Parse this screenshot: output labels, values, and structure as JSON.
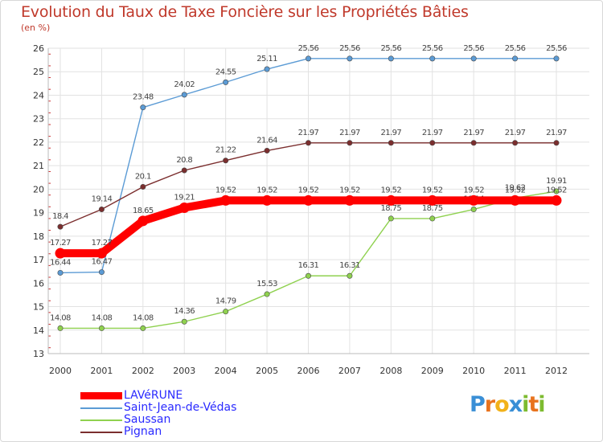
{
  "header": {
    "title": "Evolution du Taux de Taxe Foncière sur les Propriétés Bâties",
    "subtitle": "(en %)"
  },
  "logo": {
    "letters": [
      "P",
      "r",
      "o",
      "x",
      "i",
      "t",
      "i"
    ],
    "colors": [
      "#3a8fd6",
      "#e8731e",
      "#f2b21a",
      "#3a8fd6",
      "#7dbb30",
      "#e8731e",
      "#7dbb30"
    ]
  },
  "chart_data": {
    "type": "line",
    "title": "Evolution du Taux de Taxe Foncière sur les Propriétés Bâties",
    "ylabel": "(en %)",
    "xlabel": "",
    "categories": [
      "2000",
      "2001",
      "2002",
      "2003",
      "2004",
      "2005",
      "2006",
      "2007",
      "2008",
      "2009",
      "2010",
      "2011",
      "2012"
    ],
    "ylim": [
      13,
      26
    ],
    "yticks": [
      "13",
      "14",
      "15",
      "16",
      "17",
      "18",
      "19",
      "20",
      "21",
      "22",
      "23",
      "24",
      "25",
      "26"
    ],
    "grid": true,
    "legend_position": "bottom-left",
    "series": [
      {
        "name": "Saint-Jean-de-Védas",
        "color": "#5b9bd5",
        "values": [
          16.44,
          16.47,
          23.48,
          24.02,
          24.55,
          25.11,
          25.56,
          25.56,
          25.56,
          25.56,
          25.56,
          25.56,
          25.56
        ],
        "labels": [
          "16.44",
          "16.47",
          "23.48",
          "24.02",
          "24.55",
          "25.11",
          "25.56",
          "25.56",
          "25.56",
          "25.56",
          "25.56",
          "25.56",
          "25.56"
        ]
      },
      {
        "name": "Saussan",
        "color": "#8fd14f",
        "values": [
          14.08,
          14.08,
          14.08,
          14.36,
          14.79,
          15.53,
          16.31,
          16.31,
          18.75,
          18.75,
          19.14,
          19.62,
          19.91
        ],
        "labels": [
          "14.08",
          "14.08",
          "14.08",
          "14.36",
          "14.79",
          "15.53",
          "16.31",
          "16.31",
          "18.75",
          "18.75",
          "19.14",
          "19.62",
          "19.91"
        ]
      },
      {
        "name": "Pignan",
        "color": "#7b2e2e",
        "values": [
          18.4,
          19.14,
          20.1,
          20.8,
          21.22,
          21.64,
          21.97,
          21.97,
          21.97,
          21.97,
          21.97,
          21.97,
          21.97
        ],
        "labels": [
          "18.4",
          "19.14",
          "20.1",
          "20.8",
          "21.22",
          "21.64",
          "21.97",
          "21.97",
          "21.97",
          "21.97",
          "21.97",
          "21.97",
          "21.97"
        ]
      },
      {
        "name": "LAVéRUNE",
        "color": "#ff0000",
        "values": [
          17.27,
          17.27,
          18.65,
          19.21,
          19.52,
          19.52,
          19.52,
          19.52,
          19.52,
          19.52,
          19.52,
          19.52,
          19.52
        ],
        "labels": [
          "17.27",
          "17.27",
          "18.65",
          "19.21",
          "19.52",
          "19.52",
          "19.52",
          "19.52",
          "19.52",
          "19.52",
          "19.52",
          "19.52",
          "19.52"
        ]
      }
    ],
    "legend": [
      {
        "name": "LAVéRUNE",
        "color": "#ff0000",
        "emphasis": true
      },
      {
        "name": "Saint-Jean-de-Védas",
        "color": "#5b9bd5",
        "emphasis": false
      },
      {
        "name": "Saussan",
        "color": "#8fd14f",
        "emphasis": false
      },
      {
        "name": "Pignan",
        "color": "#7b2e2e",
        "emphasis": false
      }
    ]
  }
}
